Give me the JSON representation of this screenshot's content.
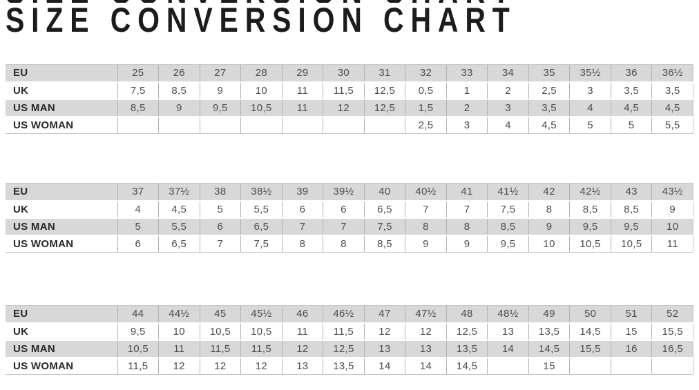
{
  "title": "SIZE CONVERSION CHART",
  "colors": {
    "row_shade": "#d8d8d8",
    "grid_line": "#b3b3b3",
    "table_border": "#c6c6c6",
    "number_text": "#4c4c4c",
    "label_text": "#272727",
    "title_text": "#1c1c1c"
  },
  "row_labels": [
    "EU",
    "UK",
    "US MAN",
    "US WOMAN"
  ],
  "tables": [
    {
      "rows": [
        {
          "label": "EU",
          "values": [
            "25",
            "26",
            "27",
            "28",
            "29",
            "30",
            "31",
            "32",
            "33",
            "34",
            "35",
            "35½",
            "36",
            "36½"
          ]
        },
        {
          "label": "UK",
          "values": [
            "7,5",
            "8,5",
            "9",
            "10",
            "11",
            "11,5",
            "12,5",
            "0,5",
            "1",
            "2",
            "2,5",
            "3",
            "3,5",
            "3,5"
          ]
        },
        {
          "label": "US MAN",
          "values": [
            "8,5",
            "9",
            "9,5",
            "10,5",
            "11",
            "12",
            "12,5",
            "1,5",
            "2",
            "3",
            "3,5",
            "4",
            "4,5",
            "4,5"
          ]
        },
        {
          "label": "US WOMAN",
          "values": [
            "",
            "",
            "",
            "",
            "",
            "",
            "",
            "2,5",
            "3",
            "4",
            "4,5",
            "5",
            "5",
            "5,5"
          ]
        }
      ]
    },
    {
      "rows": [
        {
          "label": "EU",
          "values": [
            "37",
            "37½",
            "38",
            "38½",
            "39",
            "39½",
            "40",
            "40½",
            "41",
            "41½",
            "42",
            "42½",
            "43",
            "43½"
          ]
        },
        {
          "label": "UK",
          "values": [
            "4",
            "4,5",
            "5",
            "5,5",
            "6",
            "6",
            "6,5",
            "7",
            "7",
            "7,5",
            "8",
            "8,5",
            "8,5",
            "9"
          ]
        },
        {
          "label": "US MAN",
          "values": [
            "5",
            "5,5",
            "6",
            "6,5",
            "7",
            "7",
            "7,5",
            "8",
            "8",
            "8,5",
            "9",
            "9,5",
            "9,5",
            "10"
          ]
        },
        {
          "label": "US WOMAN",
          "values": [
            "6",
            "6,5",
            "7",
            "7,5",
            "8",
            "8",
            "8,5",
            "9",
            "9",
            "9,5",
            "10",
            "10,5",
            "10,5",
            "11"
          ]
        }
      ]
    },
    {
      "rows": [
        {
          "label": "EU",
          "values": [
            "44",
            "44½",
            "45",
            "45½",
            "46",
            "46½",
            "47",
            "47½",
            "48",
            "48½",
            "49",
            "50",
            "51",
            "52"
          ]
        },
        {
          "label": "UK",
          "values": [
            "9,5",
            "10",
            "10,5",
            "10,5",
            "11",
            "11,5",
            "12",
            "12",
            "12,5",
            "13",
            "13,5",
            "14,5",
            "15",
            "15,5"
          ]
        },
        {
          "label": "US MAN",
          "values": [
            "10,5",
            "11",
            "11,5",
            "11,5",
            "12",
            "12,5",
            "13",
            "13",
            "13,5",
            "14",
            "14,5",
            "15,5",
            "16",
            "16,5"
          ]
        },
        {
          "label": "US WOMAN",
          "values": [
            "11,5",
            "12",
            "12",
            "12",
            "13",
            "13,5",
            "14",
            "14",
            "14,5",
            "",
            "15",
            "",
            "",
            ""
          ]
        }
      ]
    }
  ]
}
